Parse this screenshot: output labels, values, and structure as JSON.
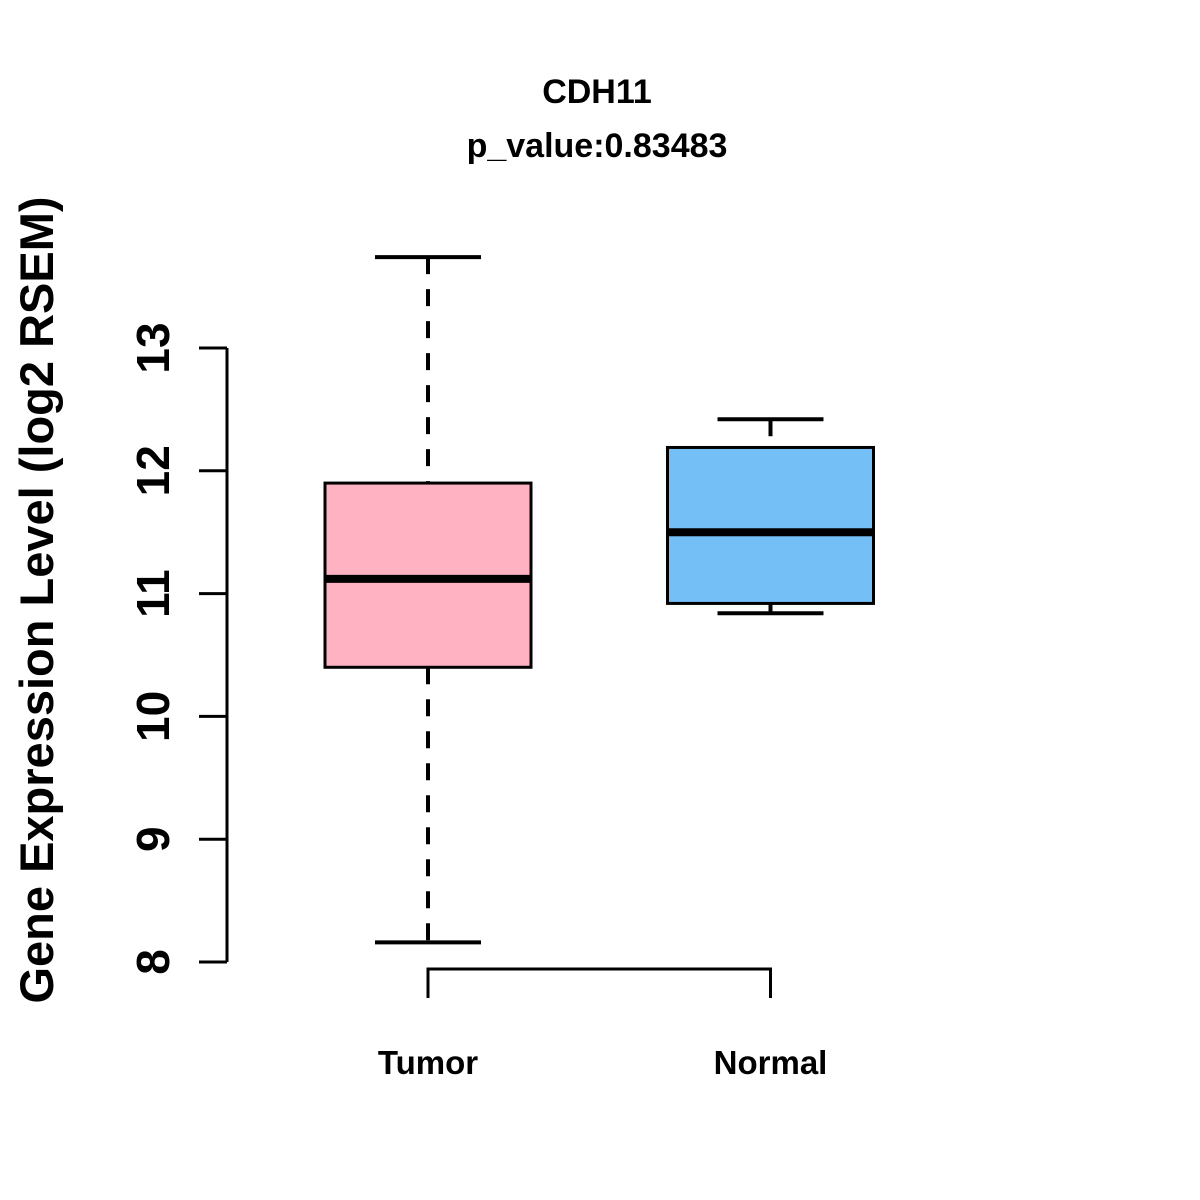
{
  "page": {
    "background": "#ffffff",
    "text_color": "#000000"
  },
  "chart_data": {
    "type": "boxplot",
    "title": "CDH11",
    "subtitle": "p_value:0.83483",
    "ylabel": "Gene Expression Level (log2 RSEM)",
    "xlabel": "",
    "yticks": [
      8,
      9,
      10,
      11,
      12,
      13
    ],
    "ylim": [
      7.9,
      13.95
    ],
    "grid": false,
    "legend": "none",
    "stroke_color": "#000000",
    "groups": [
      {
        "label": "Tumor",
        "color": "#FFB2C2",
        "whisker_low": 8.16,
        "q1": 10.4,
        "median": 11.12,
        "q3": 11.9,
        "whisker_high": 13.74
      },
      {
        "label": "Normal",
        "color": "#74BFF6",
        "whisker_low": 10.84,
        "q1": 10.92,
        "median": 11.5,
        "q3": 12.19,
        "whisker_high": 12.42
      }
    ]
  }
}
